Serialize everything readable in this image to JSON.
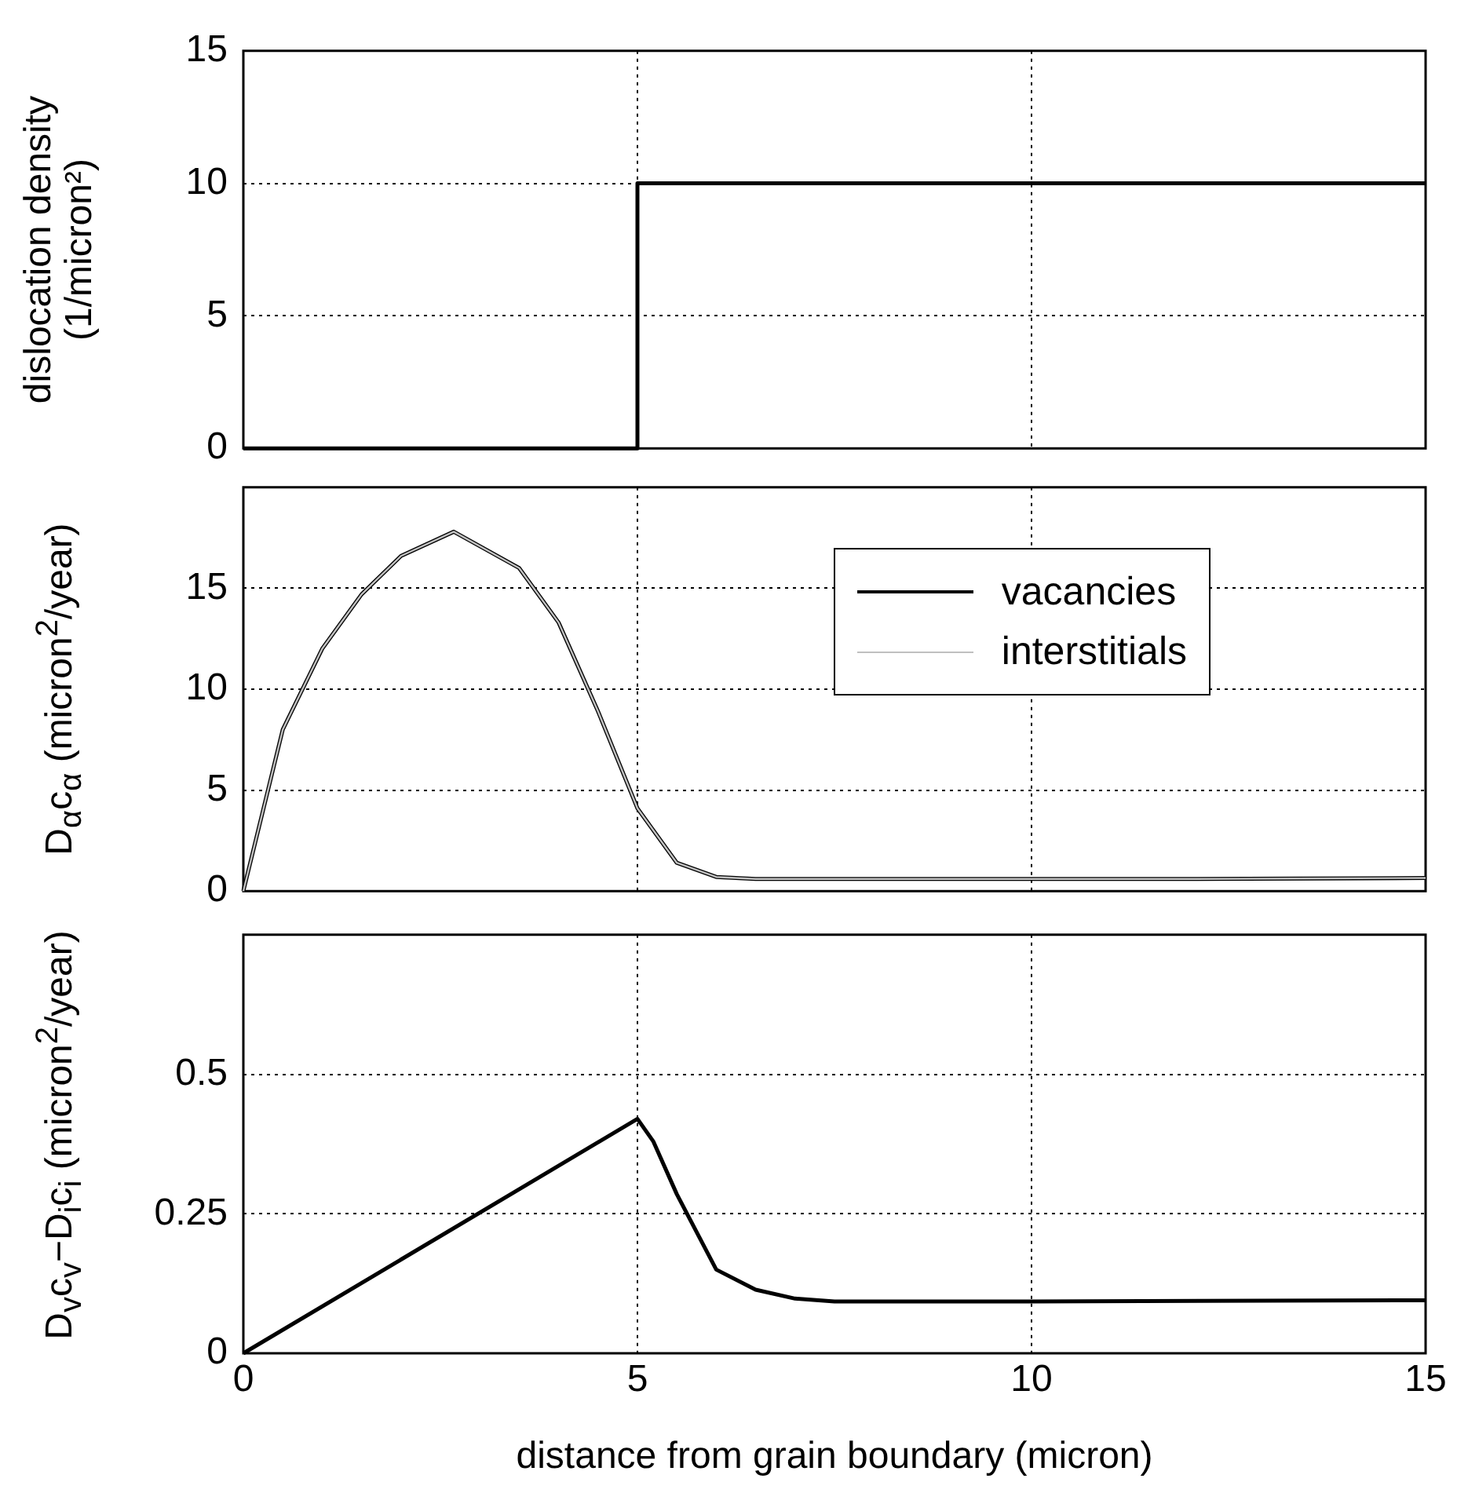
{
  "chart_data": [
    {
      "type": "step",
      "ylabel": "dislocation density (1/micron²)",
      "x": [
        0,
        5,
        15
      ],
      "marker": "none",
      "grid": true,
      "tick_labels": "y",
      "xlim": [
        0,
        15
      ],
      "xticks": [
        0,
        5,
        10,
        15
      ],
      "ylim": [
        0,
        15
      ],
      "yticks": [
        0,
        5,
        10,
        15
      ],
      "series": [
        {
          "color": "#000000",
          "values": [
            0,
            10,
            10
          ]
        }
      ]
    },
    {
      "type": "line",
      "ylabel": "D$_{α}$c$_{α}$ (micron$^{2}$/year)",
      "x": [
        0,
        0.5,
        1,
        1.5,
        2,
        2.67,
        3.5,
        4,
        4.5,
        5,
        5.5,
        6,
        6.5,
        8,
        10,
        12,
        15
      ],
      "marker": "none",
      "grid": true,
      "tick_labels": "y",
      "legend": "top right",
      "xlim": [
        0,
        15
      ],
      "xticks": [
        0,
        5,
        10,
        15
      ],
      "ylim": [
        0,
        20
      ],
      "yticks": [
        0,
        5,
        10,
        15
      ],
      "series": [
        {
          "name": "vacancies",
          "color": "#000000",
          "values": [
            0,
            8,
            12,
            14.7,
            16.6,
            17.8,
            16,
            13.3,
            8.9,
            4.1,
            1.4,
            0.7,
            0.6,
            0.6,
            0.6,
            0.6,
            0.65
          ]
        },
        {
          "name": "interstitials",
          "color": "#c0c0c0",
          "values": [
            0,
            8,
            12,
            14.7,
            16.6,
            17.8,
            16,
            13.3,
            8.9,
            4.1,
            1.4,
            0.7,
            0.6,
            0.6,
            0.6,
            0.6,
            0.65
          ]
        }
      ]
    },
    {
      "type": "line",
      "ylabel": "D$_{v}$c$_{v}$−D$_{i}$c$_{i}$ (micron$^{2}$/year)",
      "xlabel": "distance from grain boundary (micron)",
      "x": [
        0,
        5,
        5.2,
        5.5,
        6,
        6.5,
        7,
        7.5,
        10,
        15
      ],
      "marker": "none",
      "grid": true,
      "xlim": [
        0,
        15
      ],
      "xticks": [
        0,
        5,
        10,
        15
      ],
      "ylim": [
        0,
        0.75
      ],
      "yticks": [
        0,
        0.25,
        0.5
      ],
      "series": [
        {
          "color": "#000000",
          "values": [
            0,
            0.42,
            0.38,
            0.285,
            0.15,
            0.114,
            0.098,
            0.093,
            0.093,
            0.095
          ]
        }
      ]
    }
  ]
}
